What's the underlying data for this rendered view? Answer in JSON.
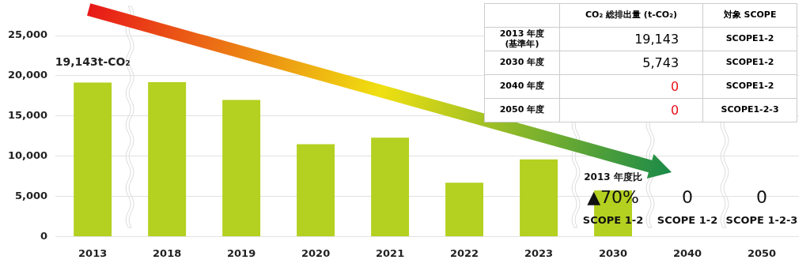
{
  "chart_data": {
    "type": "bar",
    "categories": [
      "2013",
      "2018",
      "2019",
      "2020",
      "2021",
      "2022",
      "2023",
      "2030",
      "2040",
      "2050"
    ],
    "values": [
      19143,
      19200,
      17000,
      11500,
      12300,
      6700,
      9600,
      5743,
      0,
      0
    ],
    "color": "#b4d020",
    "ylim": [
      0,
      25000
    ],
    "yticks": [
      0,
      {
        "value": 5000,
        "label": "5,000"
      },
      {
        "value": 10000,
        "label": "10,000"
      },
      {
        "value": 15000,
        "label": "15,000"
      },
      {
        "value": 20000,
        "label": "20,000"
      },
      {
        "value": 25000,
        "label": "25,000"
      }
    ],
    "grid": "y",
    "annotations": [
      {
        "text": "19,143t-CO₂",
        "x": "2013",
        "y": 19143
      },
      "2013 年度比",
      "▲70%",
      "SCOPE 1-2",
      "0",
      "SCOPE 1-2",
      "0",
      "SCOPE 1-2-3",
      "CO₂ 総排出量 (t-CO₂)",
      "対象 SCOPE",
      "2013 年度\n(基準年)",
      "19,143",
      "SCOPE1-2",
      "2030 年度",
      "5,743",
      "SCOPE1-2",
      "2040 年度",
      "0",
      "SCOPE1-2",
      "2050 年度",
      "0",
      "SCOPE1-2-3"
    ]
  }
}
